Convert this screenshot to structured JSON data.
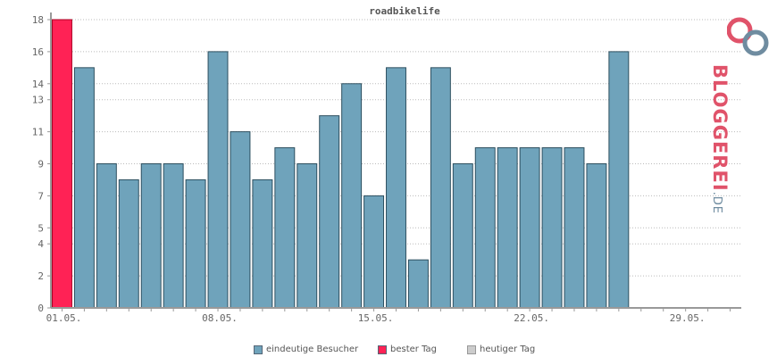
{
  "title": "roadbikelife",
  "chart_data": {
    "type": "bar",
    "title": "roadbikelife",
    "xlabel": "",
    "ylabel": "",
    "ylim": [
      0,
      18
    ],
    "y_ticks": [
      0,
      2,
      4,
      5,
      7,
      9,
      11,
      13,
      14,
      16,
      18
    ],
    "x_tick_labels": [
      "01.05.",
      "08.05.",
      "15.05.",
      "22.05.",
      "29.05."
    ],
    "grid": true,
    "legend_position": "bottom",
    "days": 31,
    "series": [
      {
        "name": "eindeutige Besucher",
        "values": [
          18,
          15,
          9,
          8,
          9,
          9,
          8,
          16,
          11,
          8,
          10,
          9,
          12,
          14,
          7,
          15,
          3,
          15,
          9,
          10,
          10,
          10,
          10,
          10,
          9,
          16
        ]
      }
    ],
    "best_day_index": 0,
    "colors": {
      "bar": "#6fa3bb",
      "best": "#ff2255",
      "today": "#cccccc",
      "bar_border": "#2d4f5f"
    }
  },
  "legend": [
    {
      "label": "eindeutige Besucher",
      "color": "#6fa3bb"
    },
    {
      "label": "bester Tag",
      "color": "#ff2255"
    },
    {
      "label": "heutiger Tag",
      "color": "#cccccc"
    }
  ],
  "logo": {
    "text": "BLOGGEREI",
    "suffix": ".DE"
  }
}
